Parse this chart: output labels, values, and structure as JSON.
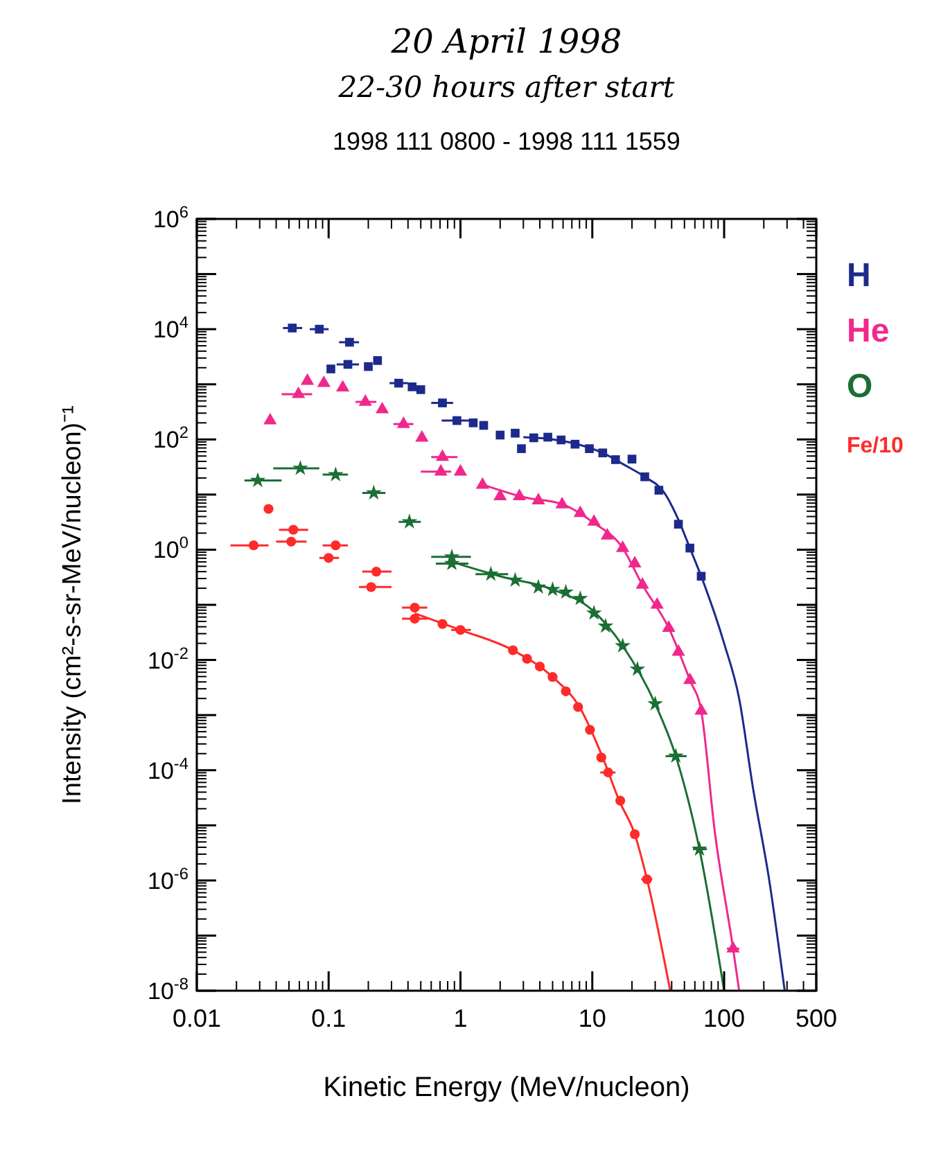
{
  "chart_data": {
    "type": "scatter",
    "title": "20 April 1998",
    "subtitle": "22-30 hours after start",
    "annotations": [
      "1998 111 0800 - 1998 111 1559"
    ],
    "xlabel": "Kinetic Energy (MeV/nucleon)",
    "ylabel": "Intensity (cm²-s-sr-MeV/nucleon)⁻¹",
    "log": "xy",
    "xlim": [
      0.01,
      500
    ],
    "xticks": [
      0.01,
      0.1,
      1,
      10,
      100,
      500
    ],
    "ylim": [
      1e-08,
      1000000
    ],
    "yticks": [
      {
        "value": 1e-08,
        "label": "10$^{-8}$"
      },
      {
        "value": 1e-07,
        "label": null
      },
      {
        "value": 1e-06,
        "label": "10$^{-6}$"
      },
      {
        "value": 1e-05,
        "label": null
      },
      {
        "value": 0.0001,
        "label": "10$^{-4}$"
      },
      {
        "value": 0.001,
        "label": null
      },
      {
        "value": 0.01,
        "label": "10$^{-2}$"
      },
      {
        "value": 0.1,
        "label": null
      },
      {
        "value": 1,
        "label": "10$^{0}$"
      },
      {
        "value": 10,
        "label": null
      },
      {
        "value": 100,
        "label": "10$^{2}$"
      },
      {
        "value": 1000,
        "label": null
      },
      {
        "value": 10000,
        "label": "10$^{4}$"
      },
      {
        "value": 100000,
        "label": null
      },
      {
        "value": 1000000,
        "label": "10$^{6}$"
      }
    ],
    "grid": false,
    "legend": "right",
    "series": [
      {
        "name": "H",
        "marker": "square",
        "color": "#1c2a8c",
        "x": [
          0.053,
          0.085,
          0.144,
          0.235,
          0.2,
          0.104,
          0.14,
          0.34,
          0.43,
          0.5,
          0.73,
          0.94,
          1.25,
          1.5,
          2.0,
          2.6,
          2.9,
          3.6,
          4.6,
          5.8,
          7.4,
          9.5,
          12,
          15,
          20,
          25,
          32,
          45,
          55,
          67
        ],
        "values": [
          10500,
          10000,
          5800,
          2700,
          2100,
          1900,
          2300,
          1050,
          900,
          800,
          460,
          220,
          200,
          180,
          120,
          130,
          68,
          107,
          110,
          98,
          82,
          68,
          57,
          43,
          44,
          21,
          12,
          2.9,
          1.07,
          0.33
        ],
        "xerrors": [
          [
            0.045,
            0.063
          ],
          [
            0.072,
            0.1
          ],
          [
            0.12,
            0.17
          ],
          null,
          null,
          null,
          [
            0.115,
            0.17
          ],
          [
            0.29,
            0.4
          ],
          null,
          null,
          [
            0.6,
            0.88
          ],
          [
            0.72,
            1.2
          ],
          null,
          null,
          null,
          null,
          null,
          null,
          null,
          null,
          null,
          null,
          null,
          null,
          null,
          null,
          null,
          null,
          null,
          null
        ]
      },
      {
        "type": "line",
        "color": "#1c2a8c",
        "x": [
          3,
          5,
          8,
          12,
          17,
          25,
          35,
          45,
          55,
          67,
          100,
          130,
          165,
          220,
          288
        ],
        "values": [
          110,
          100,
          80,
          57,
          36,
          21,
          11,
          3.5,
          1.07,
          0.33,
          0.02,
          0.002,
          5e-05,
          1e-06,
          1e-08
        ]
      },
      {
        "name": "He",
        "marker": "triangle",
        "color": "#f0288c",
        "x": [
          0.036,
          0.059,
          0.069,
          0.092,
          0.128,
          0.19,
          0.255,
          0.37,
          0.51,
          0.73,
          0.71,
          1.0,
          1.47,
          2.0,
          2.8,
          3.9,
          5.9,
          8.1,
          10.3,
          13,
          17,
          21,
          24,
          31,
          38,
          45,
          55,
          67,
          117
        ],
        "values": [
          220,
          660,
          1150,
          1050,
          870,
          480,
          350,
          190,
          107,
          48,
          26,
          26,
          15,
          9.3,
          9.3,
          7.8,
          6.6,
          4.6,
          3.2,
          1.8,
          1.07,
          0.56,
          0.23,
          0.1,
          0.038,
          0.014,
          0.0043,
          0.0012,
          5.8e-08
        ],
        "xerrors": [
          null,
          [
            0.044,
            0.075
          ],
          null,
          null,
          null,
          [
            0.16,
            0.23
          ],
          null,
          [
            0.31,
            0.44
          ],
          null,
          [
            0.6,
            0.95
          ],
          [
            0.5,
            0.85
          ],
          null,
          null,
          null,
          null,
          null,
          null,
          null,
          null,
          null,
          null,
          null,
          null,
          null,
          null,
          null,
          null,
          null,
          [
            105,
            130
          ]
        ]
      },
      {
        "type": "line",
        "color": "#f0288c",
        "x": [
          1.5,
          3,
          6,
          10,
          17,
          24,
          38,
          55,
          67,
          85,
          117,
          130
        ],
        "values": [
          15,
          9,
          6.6,
          3.2,
          1.07,
          0.23,
          0.038,
          0.0043,
          0.0012,
          7.6e-06,
          5.8e-08,
          1e-08
        ]
      },
      {
        "name": "O",
        "marker": "star",
        "color": "#1b6e34",
        "x": [
          0.029,
          0.061,
          0.113,
          0.22,
          0.41,
          0.86,
          0.86,
          1.7,
          2.6,
          3.9,
          5.0,
          6.3,
          8.1,
          10.3,
          12.6,
          17,
          22,
          30,
          43,
          65
        ],
        "values": [
          18,
          30,
          23,
          10.7,
          3.2,
          0.74,
          0.56,
          0.36,
          0.28,
          0.21,
          0.19,
          0.17,
          0.13,
          0.071,
          0.041,
          0.018,
          0.0068,
          0.0016,
          0.00018,
          3.7e-06
        ],
        "xerrors": [
          [
            0.023,
            0.044
          ],
          [
            0.038,
            0.085
          ],
          [
            0.09,
            0.14
          ],
          [
            0.18,
            0.27
          ],
          [
            0.34,
            0.5
          ],
          [
            0.6,
            1.2
          ],
          [
            0.65,
            1.15
          ],
          [
            1.3,
            2.3
          ],
          null,
          null,
          null,
          null,
          null,
          null,
          null,
          null,
          null,
          null,
          [
            36,
            52
          ],
          [
            58,
            74
          ]
        ]
      },
      {
        "type": "line",
        "color": "#1b6e34",
        "x": [
          0.86,
          2,
          5,
          10,
          17,
          30,
          43,
          65,
          100
        ],
        "values": [
          0.6,
          0.33,
          0.19,
          0.08,
          0.018,
          0.0016,
          0.00018,
          3.7e-06,
          1e-08
        ]
      },
      {
        "name": "Fe/10",
        "marker": "circle",
        "color": "#ff2a2a",
        "x": [
          0.035,
          0.027,
          0.054,
          0.052,
          0.113,
          0.1,
          0.23,
          0.21,
          0.45,
          0.45,
          0.73,
          1.0,
          2.5,
          3.2,
          4.0,
          5.0,
          6.3,
          7.8,
          9.6,
          11.7,
          13.2,
          16.3,
          21,
          26
        ],
        "values": [
          5.5,
          1.2,
          2.3,
          1.4,
          1.2,
          0.71,
          0.4,
          0.21,
          0.089,
          0.056,
          0.045,
          0.035,
          0.015,
          0.0105,
          0.0076,
          0.0049,
          0.0027,
          0.0014,
          0.00054,
          0.00017,
          9.1e-05,
          2.8e-05,
          6.9e-06,
          1.05e-06
        ],
        "xerrors": [
          null,
          [
            0.018,
            0.035
          ],
          [
            0.042,
            0.07
          ],
          [
            0.04,
            0.068
          ],
          [
            0.09,
            0.14
          ],
          [
            0.085,
            0.12
          ],
          [
            0.18,
            0.3
          ],
          [
            0.17,
            0.3
          ],
          [
            0.36,
            0.56
          ],
          [
            0.36,
            0.56
          ],
          null,
          [
            0.85,
            1.2
          ],
          null,
          null,
          null,
          null,
          null,
          null,
          null,
          null,
          [
            11.5,
            15
          ],
          null,
          null,
          [
            23.5,
            28.5
          ]
        ]
      },
      {
        "type": "line",
        "color": "#ff2a2a",
        "x": [
          0.45,
          1,
          2.5,
          5,
          8,
          12,
          16,
          21,
          26,
          39
        ],
        "values": [
          0.07,
          0.035,
          0.015,
          0.0049,
          0.0014,
          0.00017,
          2.8e-05,
          6.9e-06,
          1.05e-06,
          1e-08
        ]
      }
    ]
  }
}
